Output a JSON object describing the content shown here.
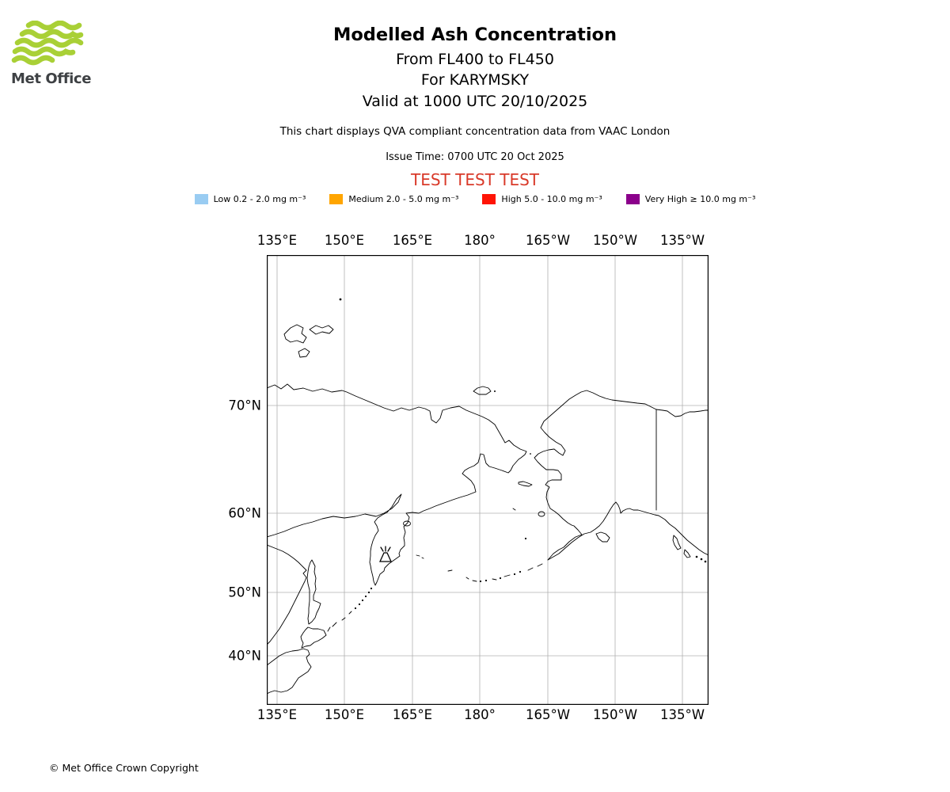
{
  "header": {
    "logo_text": "Met Office",
    "title": "Modelled Ash Concentration",
    "flight_levels": "From FL400 to FL450",
    "volcano": "For KARYMSKY",
    "valid_time": "Valid at 1000 UTC 20/10/2025",
    "compliance_note": "This chart displays QVA compliant concentration data from VAAC London",
    "issue_time": "Issue Time: 0700 UTC 20 Oct 2025",
    "test_banner": "TEST TEST TEST",
    "test_banner_color": "#d93a2a",
    "logo_green": "#a9d036"
  },
  "legend": {
    "items": [
      {
        "label": "Low 0.2 - 2.0 mg m⁻³",
        "color": "#99ccf2"
      },
      {
        "label": "Medium 2.0 - 5.0 mg m⁻³",
        "color": "#ffa500"
      },
      {
        "label": "High 5.0 - 10.0 mg m⁻³",
        "color": "#ff1405"
      },
      {
        "label": "Very High ≥ 10.0 mg m⁻³",
        "color": "#8b008b"
      }
    ]
  },
  "map": {
    "lon_labels": [
      "135°E",
      "150°E",
      "165°E",
      "180°",
      "165°W",
      "150°W",
      "135°W"
    ],
    "lat_labels": [
      "70°N",
      "60°N",
      "50°N",
      "40°N"
    ],
    "volcano_marker": "KARYMSKY"
  },
  "footer": {
    "copyright": "© Met Office Crown Copyright"
  }
}
